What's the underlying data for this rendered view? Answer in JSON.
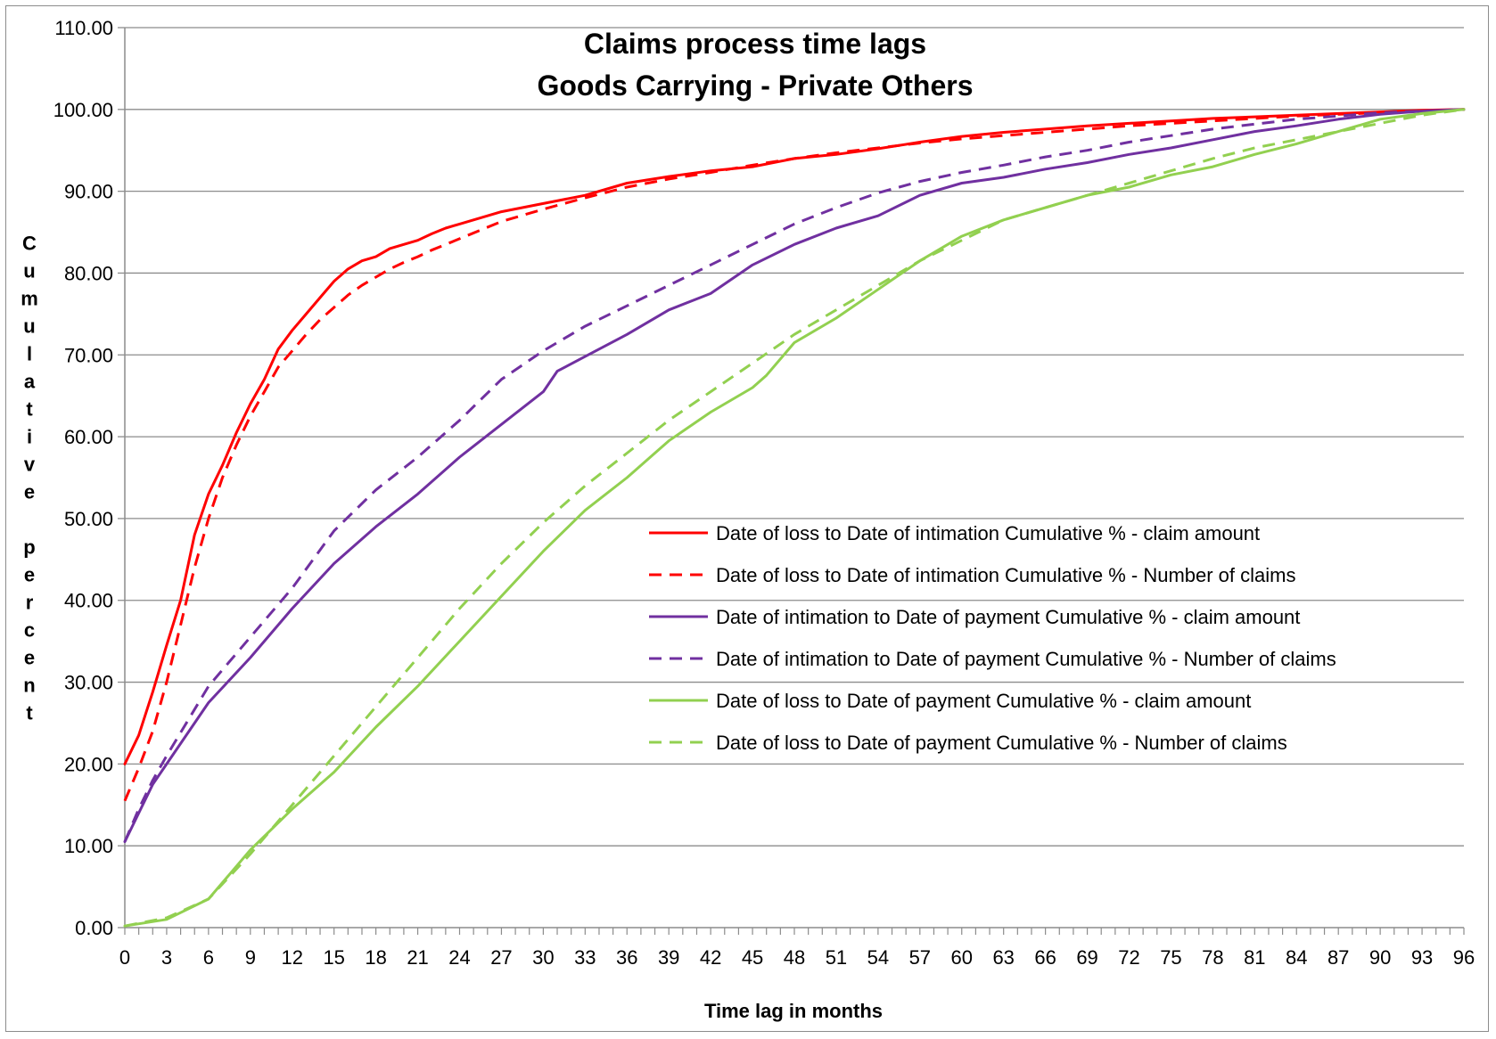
{
  "chart_data": {
    "type": "line",
    "title": [
      "Claims process time lags",
      "Goods Carrying - Private Others"
    ],
    "xlabel": "Time lag in months",
    "ylabel": "Cumulative percent",
    "xlim": [
      0,
      96
    ],
    "ylim": [
      0,
      110
    ],
    "grid": true,
    "legend_position": "center-right",
    "x_ticks": [
      0,
      3,
      6,
      9,
      12,
      15,
      18,
      21,
      24,
      27,
      30,
      33,
      36,
      39,
      42,
      45,
      48,
      51,
      54,
      57,
      60,
      63,
      66,
      69,
      72,
      75,
      78,
      81,
      84,
      87,
      90,
      93,
      96
    ],
    "y_ticks": [
      "0.00",
      "10.00",
      "20.00",
      "30.00",
      "40.00",
      "50.00",
      "60.00",
      "70.00",
      "80.00",
      "90.00",
      "100.00",
      "110.00"
    ],
    "series": [
      {
        "name": "Date of loss to Date of intimation Cumulative % - claim amount",
        "color": "#ff0000",
        "dash": "solid",
        "x": [
          0,
          1,
          2,
          3,
          4,
          5,
          6,
          7,
          8,
          9,
          10,
          11,
          12,
          13,
          14,
          15,
          16,
          17,
          18,
          19,
          20,
          21,
          22,
          23,
          24,
          27,
          30,
          33,
          36,
          39,
          42,
          45,
          48,
          51,
          54,
          57,
          60,
          63,
          66,
          69,
          72,
          75,
          78,
          81,
          84,
          87,
          90,
          93,
          96
        ],
        "y": [
          20,
          23.5,
          28.8,
          34.5,
          40,
          48,
          53,
          56.5,
          60.5,
          64,
          67,
          70.7,
          73,
          75,
          77,
          79,
          80.5,
          81.5,
          82,
          83,
          83.5,
          84,
          84.8,
          85.5,
          86,
          87.5,
          88.5,
          89.5,
          91,
          91.8,
          92.5,
          93,
          94,
          94.5,
          95.2,
          96,
          96.7,
          97.2,
          97.6,
          98,
          98.3,
          98.6,
          98.9,
          99.1,
          99.3,
          99.5,
          99.7,
          99.9,
          100
        ]
      },
      {
        "name": "Date of loss to Date of intimation Cumulative % - Number of claims",
        "color": "#ff0000",
        "dash": "dashed",
        "x": [
          0,
          1,
          2,
          3,
          4,
          5,
          6,
          7,
          8,
          9,
          10,
          11,
          12,
          13,
          14,
          15,
          16,
          17,
          18,
          19,
          20,
          21,
          22,
          23,
          24,
          27,
          30,
          33,
          36,
          39,
          42,
          45,
          48,
          51,
          54,
          57,
          60,
          63,
          66,
          69,
          72,
          75,
          78,
          81,
          84,
          87,
          90,
          93,
          96
        ],
        "y": [
          15.5,
          19.5,
          24,
          30,
          37,
          44,
          50,
          55,
          59,
          62.5,
          65.5,
          68.5,
          70.5,
          72.5,
          74.3,
          75.8,
          77.3,
          78.5,
          79.5,
          80.5,
          81.3,
          82,
          82.8,
          83.5,
          84.2,
          86.3,
          87.8,
          89.2,
          90.5,
          91.5,
          92.3,
          93.2,
          94,
          94.7,
          95.3,
          95.9,
          96.4,
          96.8,
          97.2,
          97.6,
          98,
          98.3,
          98.6,
          98.9,
          99.2,
          99.4,
          99.6,
          99.8,
          100
        ]
      },
      {
        "name": "Date of intimation to Date of payment Cumulative % - claim amount",
        "color": "#7030a0",
        "dash": "solid",
        "x": [
          0,
          1,
          2,
          3,
          6,
          9,
          12,
          15,
          18,
          21,
          24,
          27,
          30,
          31,
          33,
          36,
          39,
          42,
          45,
          48,
          51,
          54,
          57,
          60,
          63,
          66,
          69,
          72,
          75,
          78,
          81,
          84,
          87,
          90,
          93,
          96
        ],
        "y": [
          10.5,
          14,
          17.5,
          20,
          27.5,
          33,
          39,
          44.5,
          49,
          53,
          57.5,
          61.5,
          65.5,
          68,
          69.8,
          72.5,
          75.5,
          77.5,
          81,
          83.5,
          85.5,
          87,
          89.5,
          91,
          91.7,
          92.7,
          93.5,
          94.5,
          95.3,
          96.3,
          97.3,
          98,
          98.8,
          99.4,
          99.8,
          100
        ]
      },
      {
        "name": "Date of intimation to Date of payment Cumulative % - Number of claims",
        "color": "#7030a0",
        "dash": "dashed",
        "x": [
          0,
          1,
          2,
          3,
          6,
          9,
          12,
          15,
          18,
          21,
          24,
          27,
          30,
          33,
          36,
          39,
          42,
          45,
          48,
          51,
          54,
          57,
          60,
          63,
          66,
          69,
          72,
          75,
          78,
          81,
          84,
          87,
          90,
          93,
          96
        ],
        "y": [
          10.5,
          14.5,
          18,
          21,
          29.5,
          35.5,
          41.5,
          48.5,
          53.5,
          57.5,
          62,
          67,
          70.5,
          73.5,
          76,
          78.5,
          81,
          83.5,
          86,
          88,
          89.8,
          91.2,
          92.3,
          93.2,
          94.2,
          95,
          96,
          96.8,
          97.6,
          98.2,
          98.8,
          99.2,
          99.6,
          99.8,
          100
        ]
      },
      {
        "name": "Date of loss to Date of payment Cumulative % - claim amount",
        "color": "#92d050",
        "dash": "solid",
        "x": [
          0,
          3,
          6,
          9,
          12,
          15,
          18,
          21,
          24,
          27,
          30,
          33,
          36,
          39,
          42,
          45,
          46,
          48,
          51,
          54,
          57,
          60,
          63,
          66,
          69,
          72,
          75,
          78,
          81,
          84,
          87,
          90,
          93,
          96
        ],
        "y": [
          0.2,
          1,
          3.5,
          9.5,
          14.5,
          19,
          24.5,
          29.5,
          35,
          40.5,
          46,
          51,
          55,
          59.5,
          63,
          66,
          67.5,
          71.5,
          74.5,
          78,
          81.5,
          84.5,
          86.5,
          88,
          89.5,
          90.5,
          92,
          93,
          94.5,
          95.8,
          97.3,
          98.8,
          99.5,
          100
        ]
      },
      {
        "name": "Date of loss to Date of payment Cumulative % - Number of claims",
        "color": "#92d050",
        "dash": "dashed",
        "x": [
          0,
          3,
          6,
          9,
          12,
          15,
          18,
          21,
          24,
          27,
          30,
          33,
          36,
          39,
          42,
          45,
          48,
          51,
          54,
          57,
          60,
          63,
          66,
          69,
          72,
          75,
          78,
          81,
          84,
          87,
          90,
          93,
          96
        ],
        "y": [
          0.2,
          1.2,
          3.5,
          9,
          15,
          21,
          27,
          33,
          39,
          44.5,
          49.5,
          54,
          58,
          62,
          65.5,
          69,
          72.5,
          75.5,
          78.5,
          81.5,
          84,
          86.5,
          88,
          89.5,
          91,
          92.5,
          94,
          95.3,
          96.3,
          97.3,
          98.3,
          99.3,
          100
        ]
      }
    ]
  }
}
